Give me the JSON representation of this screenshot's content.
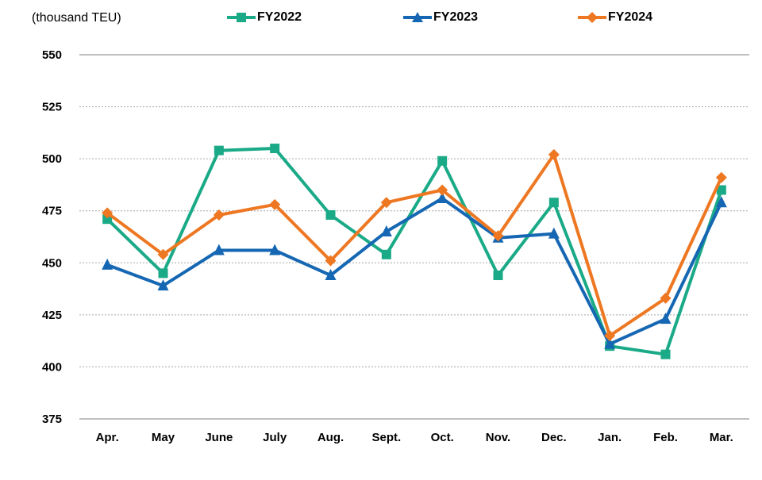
{
  "unit_label": "(thousand TEU)",
  "colors": {
    "FY2022": "#1AAA87",
    "FY2023": "#1667B3",
    "FY2024": "#EE7722",
    "grid": "#A6A6A6",
    "axis": "#808080"
  },
  "chart_data": {
    "type": "line",
    "title": "",
    "xlabel": "",
    "ylabel": "(thousand TEU)",
    "categories": [
      "Apr.",
      "May",
      "June",
      "July",
      "Aug.",
      "Sept.",
      "Oct.",
      "Nov.",
      "Dec.",
      "Jan.",
      "Feb.",
      "Mar."
    ],
    "ylim": [
      375,
      550
    ],
    "yticks": [
      375,
      400,
      425,
      450,
      475,
      500,
      525,
      550
    ],
    "grid": true,
    "legend_position": "top",
    "series": [
      {
        "name": "FY2022",
        "marker": "square",
        "values": [
          471,
          445,
          504,
          505,
          473,
          454,
          499,
          444,
          479,
          410,
          406,
          485
        ]
      },
      {
        "name": "FY2023",
        "marker": "triangle",
        "values": [
          449,
          439,
          456,
          456,
          444,
          465,
          481,
          462,
          464,
          411,
          423,
          479
        ]
      },
      {
        "name": "FY2024",
        "marker": "diamond",
        "values": [
          474,
          454,
          473,
          478,
          451,
          479,
          485,
          463,
          502,
          415,
          433,
          491
        ]
      }
    ]
  }
}
